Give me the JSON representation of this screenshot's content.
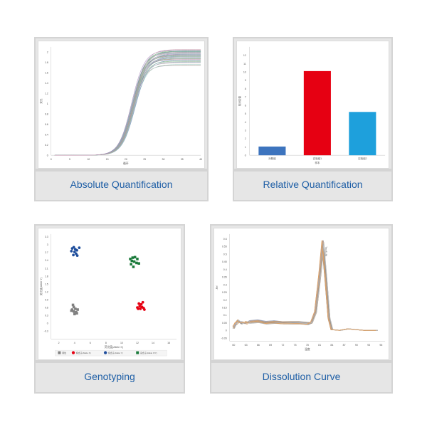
{
  "cards": [
    {
      "id": "absolute",
      "caption": "Absolute Quantification"
    },
    {
      "id": "relative",
      "caption": "Relative Quantification"
    },
    {
      "id": "genotyping",
      "caption": "Genotyping"
    },
    {
      "id": "dissolution",
      "caption": "Dissolution Curve"
    }
  ],
  "chart_data": [
    {
      "type": "line",
      "title": "Absolute Quantification",
      "xlabel": "循环",
      "ylabel": "荧光",
      "x_ticks": [
        0,
        5,
        10,
        15,
        20,
        25,
        30,
        35,
        40
      ],
      "y_ticks": [
        0,
        0.2,
        0.4,
        0.6,
        0.8,
        1,
        1.2,
        1.4,
        1.6,
        1.8,
        2
      ],
      "xlim": [
        0,
        40
      ],
      "ylim": [
        0,
        2.1
      ],
      "series_description": "~40 overlapping sigmoid amplification curves, baseline ~0 until cycle ~16, inflection ~cycle 22, plateau 1.75–2.05",
      "plateaus": [
        1.75,
        1.8,
        1.83,
        1.86,
        1.88,
        1.9,
        1.92,
        1.94,
        1.96,
        1.98,
        2.0,
        2.02,
        2.04
      ],
      "midpoint_cycle": 22,
      "grid": false
    },
    {
      "type": "bar",
      "title": "Relative Quantification",
      "xlabel": "样本",
      "ylabel": "相对定量",
      "categories": [
        "对照组",
        "实验组1",
        "实验组2"
      ],
      "values": [
        1.05,
        10.1,
        5.2
      ],
      "colors": [
        "#3d74be",
        "#e60012",
        "#1ea0dc"
      ],
      "y_ticks": [
        0,
        1,
        2,
        3,
        4,
        5,
        6,
        7,
        8,
        9,
        10,
        11,
        12
      ],
      "ylim": [
        0,
        13
      ],
      "grid": false
    },
    {
      "type": "scatter",
      "title": "Genotyping",
      "xlabel": "荧光值(Allele X)",
      "ylabel": "荧光值(Allele Y)",
      "x_ticks": [
        2,
        4,
        6,
        8,
        10,
        12,
        14,
        16
      ],
      "y_ticks": [
        -0.3,
        0,
        0.3,
        0.6,
        0.9,
        1.2,
        1.5,
        1.8,
        2.1,
        2.4,
        2.7,
        3,
        3.3
      ],
      "xlim": [
        1,
        17
      ],
      "ylim": [
        -0.6,
        3.4
      ],
      "legend": [
        "阴性",
        "纯合子(Allele X)",
        "纯合子(Allele Y)",
        "杂合子(Allele X/Y)"
      ],
      "series": [
        {
          "name": "阴性",
          "color": "#808080",
          "marker": "square",
          "points": [
            [
              3.8,
              0.7
            ],
            [
              3.9,
              0.62
            ],
            [
              3.7,
              0.52
            ],
            [
              4.1,
              0.55
            ],
            [
              4.2,
              0.42
            ],
            [
              3.9,
              0.45
            ],
            [
              4.0,
              0.35
            ],
            [
              4.3,
              0.38
            ],
            [
              3.6,
              0.48
            ],
            [
              4.4,
              0.52
            ]
          ]
        },
        {
          "name": "纯合子(Allele X)",
          "color": "#e60012",
          "marker": "circle",
          "points": [
            [
              12.0,
              0.6
            ],
            [
              12.3,
              0.65
            ],
            [
              12.5,
              0.72
            ],
            [
              12.7,
              0.8
            ],
            [
              12.4,
              0.55
            ],
            [
              12.8,
              0.58
            ],
            [
              12.9,
              0.52
            ],
            [
              12.2,
              0.75
            ],
            [
              12.6,
              0.62
            ],
            [
              12.1,
              0.55
            ]
          ]
        },
        {
          "name": "纯合子(Allele Y)",
          "color": "#1f4e9c",
          "marker": "circle",
          "points": [
            [
              3.7,
              2.85
            ],
            [
              3.9,
              2.9
            ],
            [
              4.1,
              2.82
            ],
            [
              4.3,
              2.78
            ],
            [
              4.0,
              2.72
            ],
            [
              4.2,
              2.65
            ],
            [
              3.85,
              2.6
            ],
            [
              4.35,
              2.58
            ],
            [
              4.6,
              2.88
            ],
            [
              3.6,
              2.75
            ]
          ]
        },
        {
          "name": "杂合子(Allele X/Y)",
          "color": "#1a7a3a",
          "marker": "square",
          "points": [
            [
              11.1,
              2.45
            ],
            [
              11.4,
              2.5
            ],
            [
              11.7,
              2.52
            ],
            [
              12.0,
              2.45
            ],
            [
              11.3,
              2.38
            ],
            [
              11.6,
              2.35
            ],
            [
              11.9,
              2.3
            ],
            [
              11.2,
              2.25
            ],
            [
              12.2,
              2.28
            ],
            [
              11.5,
              2.15
            ]
          ]
        }
      ],
      "grid": false
    },
    {
      "type": "line",
      "title": "Dissolution Curve",
      "xlabel": "温度",
      "ylabel": "-Rn'",
      "x_ticks": [
        60,
        63,
        66,
        69,
        72,
        75,
        78,
        81,
        84,
        87,
        90,
        93,
        96
      ],
      "y_ticks": [
        -0.05,
        0,
        0.05,
        0.1,
        0.15,
        0.2,
        0.25,
        0.3,
        0.35,
        0.4,
        0.45,
        0.5,
        0.55,
        0.6
      ],
      "xlim": [
        59,
        97
      ],
      "ylim": [
        -0.07,
        0.63
      ],
      "peak": {
        "x": 82,
        "y": 0.57,
        "label": "Tm=81.84"
      },
      "profile": [
        [
          60,
          0.02
        ],
        [
          60.5,
          0.04
        ],
        [
          61,
          0.06
        ],
        [
          62,
          0.05
        ],
        [
          63,
          0.05
        ],
        [
          64,
          0.055
        ],
        [
          66,
          0.06
        ],
        [
          68,
          0.05
        ],
        [
          70,
          0.055
        ],
        [
          72,
          0.05
        ],
        [
          74,
          0.05
        ],
        [
          76,
          0.05
        ],
        [
          78,
          0.045
        ],
        [
          79,
          0.05
        ],
        [
          80,
          0.12
        ],
        [
          81,
          0.35
        ],
        [
          81.8,
          0.57
        ],
        [
          82.5,
          0.35
        ],
        [
          83.3,
          0.08
        ],
        [
          84,
          0.005
        ],
        [
          86,
          0.0
        ],
        [
          88,
          0.01
        ],
        [
          90,
          0.005
        ],
        [
          92,
          0.0
        ],
        [
          95,
          0.0
        ]
      ],
      "grid": false
    }
  ]
}
